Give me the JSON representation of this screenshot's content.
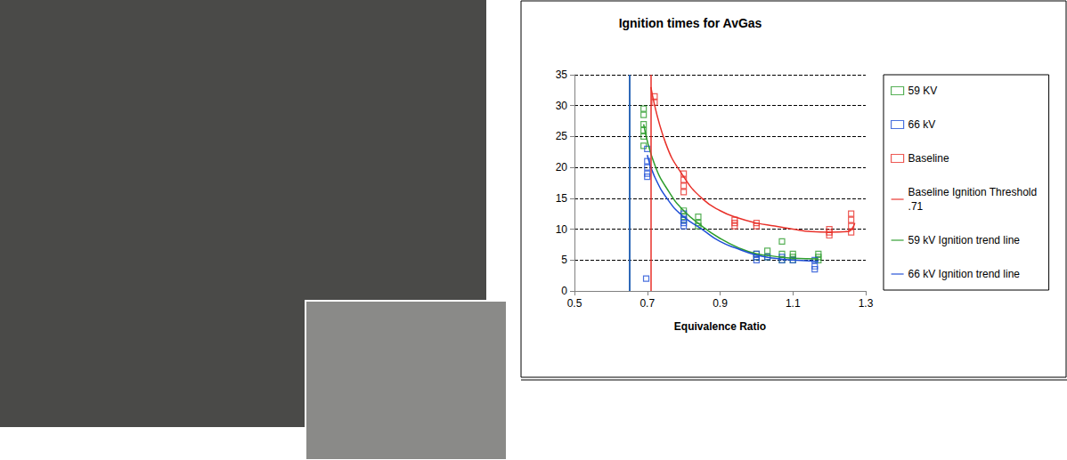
{
  "chart_data": {
    "type": "scatter",
    "title": "Ignition times for AvGas",
    "x_label": "Equivalence Ratio",
    "xlim": [
      0.5,
      1.3
    ],
    "xticks": [
      0.5,
      0.7,
      0.9,
      1.1,
      1.3
    ],
    "ylim": [
      0,
      35
    ],
    "yticks": [
      0,
      5,
      10,
      15,
      20,
      25,
      30,
      35
    ],
    "grid": true,
    "legend": "right",
    "series": [
      {
        "name": "59 KV",
        "type": "scatter",
        "marker": "square",
        "color": "#2e9e2e",
        "values": [
          [
            0.69,
            29.5
          ],
          [
            0.69,
            28.5
          ],
          [
            0.69,
            27
          ],
          [
            0.69,
            26
          ],
          [
            0.69,
            25
          ],
          [
            0.69,
            23.5
          ],
          [
            0.8,
            13
          ],
          [
            0.8,
            12
          ],
          [
            0.8,
            11.5
          ],
          [
            0.84,
            12
          ],
          [
            0.84,
            11
          ],
          [
            0.84,
            10.5
          ],
          [
            1.0,
            6
          ],
          [
            1.0,
            5.5
          ],
          [
            1.03,
            6.5
          ],
          [
            1.03,
            5.5
          ],
          [
            1.07,
            8
          ],
          [
            1.07,
            6
          ],
          [
            1.07,
            5
          ],
          [
            1.1,
            6
          ],
          [
            1.1,
            5.5
          ],
          [
            1.1,
            5
          ],
          [
            1.17,
            6
          ],
          [
            1.17,
            5.5
          ],
          [
            1.17,
            5
          ]
        ]
      },
      {
        "name": "66 kV",
        "type": "scatter",
        "marker": "square",
        "color": "#1f4fd6",
        "values": [
          [
            0.7,
            23
          ],
          [
            0.7,
            21
          ],
          [
            0.7,
            20
          ],
          [
            0.7,
            19
          ],
          [
            0.7,
            18.5
          ],
          [
            0.697,
            2
          ],
          [
            0.8,
            12.5
          ],
          [
            0.8,
            11.5
          ],
          [
            0.8,
            11
          ],
          [
            0.8,
            10.5
          ],
          [
            1.0,
            6
          ],
          [
            1.0,
            5.5
          ],
          [
            1.0,
            5
          ],
          [
            1.03,
            5.5
          ],
          [
            1.07,
            5.5
          ],
          [
            1.07,
            5
          ],
          [
            1.1,
            5
          ],
          [
            1.16,
            5
          ],
          [
            1.16,
            4
          ],
          [
            1.16,
            3.5
          ]
        ]
      },
      {
        "name": "Baseline",
        "type": "scatter",
        "marker": "square",
        "color": "#e8312a",
        "values": [
          [
            0.72,
            31.5
          ],
          [
            0.72,
            30.5
          ],
          [
            0.8,
            19
          ],
          [
            0.8,
            18
          ],
          [
            0.8,
            17
          ],
          [
            0.8,
            16
          ],
          [
            0.94,
            11.5
          ],
          [
            0.94,
            11
          ],
          [
            0.94,
            10.5
          ],
          [
            1.0,
            11
          ],
          [
            1.0,
            10.5
          ],
          [
            1.2,
            10
          ],
          [
            1.2,
            9.5
          ],
          [
            1.2,
            9
          ],
          [
            1.26,
            12.5
          ],
          [
            1.26,
            11.5
          ],
          [
            1.26,
            10.5
          ],
          [
            1.26,
            9.5
          ]
        ]
      },
      {
        "name": "Baseline Ignition Threshold .71",
        "type": "line",
        "line_style": "solid",
        "color": "#e8312a",
        "vertical_line": 0.71,
        "values": [
          [
            0.71,
            33
          ],
          [
            0.75,
            24
          ],
          [
            0.8,
            18.5
          ],
          [
            0.85,
            15
          ],
          [
            0.9,
            13
          ],
          [
            0.95,
            11.8
          ],
          [
            1.0,
            11
          ],
          [
            1.05,
            10.5
          ],
          [
            1.1,
            10
          ],
          [
            1.15,
            9.6
          ],
          [
            1.2,
            9.5
          ],
          [
            1.25,
            9.6
          ],
          [
            1.27,
            11
          ]
        ]
      },
      {
        "name": "59 kV Ignition trend line",
        "type": "line",
        "line_style": "solid",
        "color": "#2e9e2e",
        "vertical_line": 0.648,
        "values": [
          [
            0.69,
            27
          ],
          [
            0.72,
            20.5
          ],
          [
            0.76,
            16
          ],
          [
            0.8,
            13
          ],
          [
            0.85,
            10.5
          ],
          [
            0.9,
            8.5
          ],
          [
            0.95,
            7
          ],
          [
            1.0,
            6
          ],
          [
            1.05,
            5.6
          ],
          [
            1.1,
            5.3
          ],
          [
            1.17,
            5.2
          ]
        ]
      },
      {
        "name": "66 kV Ignition trend line",
        "type": "line",
        "line_style": "solid",
        "color": "#1f4fd6",
        "vertical_line": 0.652,
        "values": [
          [
            0.7,
            22
          ],
          [
            0.72,
            18.5
          ],
          [
            0.76,
            14.5
          ],
          [
            0.8,
            12
          ],
          [
            0.85,
            10
          ],
          [
            0.9,
            8
          ],
          [
            0.95,
            6.8
          ],
          [
            1.0,
            5.8
          ],
          [
            1.05,
            5.3
          ],
          [
            1.1,
            5
          ],
          [
            1.17,
            4.8
          ]
        ]
      }
    ]
  }
}
